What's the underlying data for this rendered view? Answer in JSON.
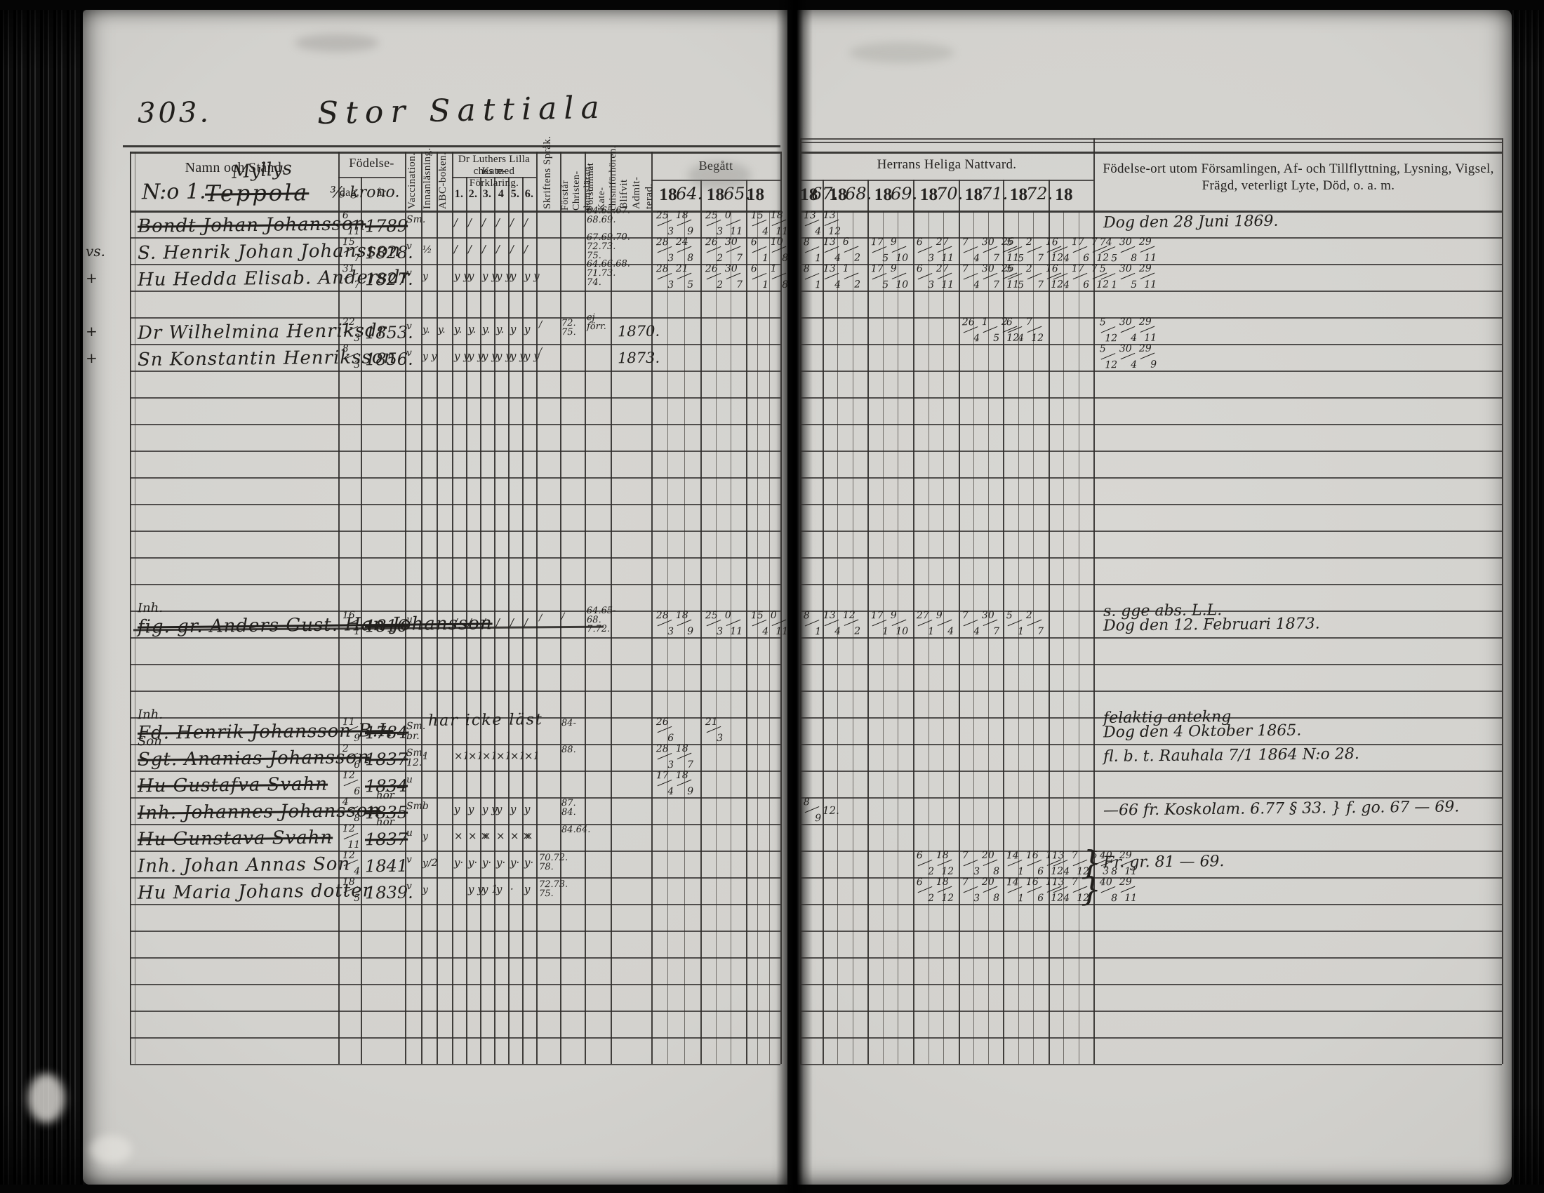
{
  "page": {
    "number": "303.",
    "title": "Stor Sattiala"
  },
  "table": {
    "left_headers": {
      "name": "Namn och Stånd.",
      "birth": "Födelse-",
      "birth_day": "dag.",
      "birth_year": "år.",
      "vaccination": "Vaccination.",
      "reading": "Innanläsning.",
      "abc": "ABC-boken.",
      "catechism_line1": "Dr Luthers Lilla Kate-",
      "catechism_line2": "ches med Förklaring.",
      "catechism_sub": [
        "1.",
        "2.",
        "3.",
        "4",
        "5.",
        "6."
      ],
      "scripture": "Skriftens Språk.",
      "understands": "Förstår Christen-domsläran.",
      "missed": "Försummat Kate-chisniförhören.",
      "admitted": "Blifvit Admit-terad.",
      "begatt": "Begått",
      "years": [
        {
          "p": "18",
          "w": "64."
        },
        {
          "p": "18",
          "w": "65."
        },
        {
          "p": "18",
          "w": ""
        }
      ]
    },
    "right_headers": {
      "nattvard": "Herrans Heliga Nattvard.",
      "years": [
        {
          "p": "18",
          "w": "67."
        },
        {
          "p": "18",
          "w": "68."
        },
        {
          "p": "18",
          "w": "69."
        },
        {
          "p": "18",
          "w": "70."
        },
        {
          "p": "18",
          "w": "71."
        },
        {
          "p": "18",
          "w": "72."
        },
        {
          "p": "18",
          "w": ""
        }
      ],
      "notes_line1": "Födelse-ort utom Församlingen, Af- och Tillflyttning, Lysning, Vigsel,",
      "notes_line2": "Frägd, veterligt Lyte, Död, o. a. m."
    },
    "group_heading": {
      "no": "N:o 1.",
      "name": "Teppola",
      "overwrite": "Myllys",
      "share": "⅜ krono."
    }
  },
  "rows": [
    {
      "i": 0,
      "name": "Bondt Johan Johansson",
      "strike": true,
      "dag": "6/11",
      "ar": "1789",
      "vacc": "Sm.",
      "k": [
        "∕",
        "∕",
        "∕",
        "∕",
        "∕",
        "∕"
      ],
      "forsummat": "64.65.67. 68.69.",
      "b": [
        "25/3 18/9",
        "25/3 0/11",
        "15/4 18/11"
      ],
      "n": [
        "13/4 13/12",
        "",
        "",
        "",
        "",
        "",
        ""
      ],
      "notes": [
        "Dog den 28 Juni 1869."
      ]
    },
    {
      "i": 1,
      "margin": "vs.",
      "prefix": "S.",
      "name": "Henrik Johan Johansson",
      "dag": "15/7",
      "ar": "1828.",
      "vacc": "v",
      "innan": "½",
      "k": [
        "∕",
        "∕",
        "∕",
        "∕",
        "∕",
        "∕"
      ],
      "forsummat": "67.69.70. 72.73. 75.",
      "b": [
        "28/3 24/8",
        "26/2 30/7",
        "6/1 10/8"
      ],
      "n": [
        "8/1 13/4 6/2",
        "",
        "17/5 9/10",
        "6/3 27/11",
        "7/4 30/7 26/11",
        "5/5 2/7 1/12",
        "6/4 17/6 7/12"
      ],
      "notefrac": "74/5 30/8 29/11"
    },
    {
      "i": 2,
      "margin": "+",
      "prefix": "Hu",
      "name": "Hedda Elisab. Andersdr",
      "dag": "31/7",
      "ar": "1827.",
      "vacc": "v",
      "innan": "y",
      "k": [
        "y y",
        "y",
        "y y",
        "y y",
        "y",
        "y y"
      ],
      "forsummat": "64.66.68. 71.73. 74.",
      "b": [
        "28/3 21/5",
        "26/2 30/7",
        "6/1 1/8"
      ],
      "n": [
        "8/1 13/4 1/2",
        "",
        "17/5 9/10",
        "6/3 27/11",
        "7/4 30/7 26/11",
        "5/5 2/7 1/12",
        "6/4 17/6 7/12"
      ],
      "notefrac": "5/1 30/5 29/11"
    },
    {
      "i": 4,
      "margin": "+",
      "prefix": "Dr",
      "name": "Wilhelmina Henriksdr",
      "dag": "22/3",
      "ar": "1853.",
      "vacc": "v",
      "innan": "y.",
      "abc": "y.",
      "k": [
        "y.",
        "y.",
        "y.",
        "y.",
        "y",
        "y"
      ],
      "skrift": "∕",
      "forstar": "72. 75.",
      "forsummat": "ej förr.",
      "admit": "1870.",
      "n": [
        "",
        "",
        "",
        "",
        "26/4 1/5 2/12",
        "6/4 7/12",
        ""
      ],
      "notefrac": "5/12 30/4 29/11"
    },
    {
      "i": 5,
      "margin": "+",
      "prefix": "Sn",
      "name": "Konstantin Henriksson",
      "dag": "8/3",
      "ar": "1856.",
      "vacc": "v",
      "innan": "y y",
      "k": [
        "y y",
        "y y",
        "y y",
        "y y",
        "y y",
        "y y"
      ],
      "skrift": "∕",
      "admit": "1873.",
      "notefrac": "5/12 30/4 29/9"
    },
    {
      "i": 15,
      "mabove": "Inh.",
      "prefix": "fig. gr.",
      "name": "Anders Gust. Han Johansson",
      "strike": true,
      "longstrike": true,
      "dag": "16/1",
      "ar": "1816",
      "vacc": "u",
      "k": [
        "∕",
        "∕",
        "∕",
        "∕",
        "∕",
        "∕"
      ],
      "skrift": "∕",
      "forstar": "∕",
      "forsummat": "64.65-68. 7.72.",
      "b": [
        "28/3 18/9",
        "25/3 0/11",
        "15/4 0/11"
      ],
      "n": [
        "8/1 13/4 12/2",
        "",
        "17/1 9/10",
        "27/1 9/4",
        "7/4 30/7",
        "5/1 2/7",
        ""
      ],
      "notes": [
        "s. gge abs. L.L.",
        "Dog den 12. Februari 1873."
      ]
    },
    {
      "i": 19,
      "mabove": "Inh.",
      "prefix": "Fd.",
      "name": "Henrik Johansson B.I.",
      "strike": true,
      "dag": "11/9",
      "ar": "1784",
      "vacc": "Sm. br.",
      "kspan": "har icke läst",
      "forstar": "84-",
      "b": [
        "26/6",
        "21/3",
        ""
      ],
      "notes": [
        "felaktig antekng",
        "Dog den 4 Oktober 1865."
      ]
    },
    {
      "i": 20,
      "mabove": "Son",
      "prefix": "Sgt.",
      "name": "Ananias Johansson",
      "strike": true,
      "dag": "2/6",
      "ar": "1837",
      "vacc": "Sm. 12.",
      "innan": "1",
      "k": [
        "×1",
        "×1",
        "×1",
        "×1",
        "×1",
        "×1"
      ],
      "forstar": "88.",
      "b": [
        "28/3 18/7",
        "",
        ""
      ],
      "notes": [
        "fl. b. t. Rauhala 7/1 1864 N:o 28."
      ]
    },
    {
      "i": 21,
      "prefix": "Hu",
      "name": "Gustafva Svahn",
      "strike": true,
      "dag": "12/6",
      "ar": "1834",
      "vacc": "u",
      "b": [
        "17/4 18/9",
        "",
        ""
      ]
    },
    {
      "i": 22,
      "prefix": "Inh.",
      "name": "Johannes Johansson",
      "strike": true,
      "dag": "4/8",
      "arnote": "hör",
      "ar": "1835",
      "vacc": "Smb",
      "k": [
        "y",
        "y",
        "y y",
        "y",
        "y",
        "y"
      ],
      "forstar": "87. 84.",
      "n": [
        "8/9 12.",
        "",
        "",
        "",
        "",
        "",
        ""
      ],
      "notes": [
        "—66 fr. Koskolam. 6.77 § 33.  }  f. go. 67 — 69."
      ]
    },
    {
      "i": 23,
      "prefix": "Hu",
      "name": "Gunstava Svahn",
      "strike": true,
      "dag": "12/11",
      "arnote": "hör",
      "ar": "1837",
      "vacc": "u",
      "innan": "y",
      "k": [
        "×",
        "× ×",
        "×",
        "×",
        "× ×",
        "×"
      ],
      "forstar": "84.64."
    },
    {
      "i": 24,
      "prefix": "Inh.",
      "name": "Johan Annas Son",
      "dag": "12/4",
      "ar": "1841",
      "vacc": "v",
      "innan": "y/2",
      "k": [
        "y·",
        "y·",
        "y·",
        "y·",
        "y·",
        "y·"
      ],
      "skrift": "70.72. 78.",
      "n": [
        "",
        "",
        "",
        "6/2 18/12",
        "7/3 20/8",
        "14/1 16/6 1/12",
        "13/4 7/12 5/3"
      ],
      "brace": true,
      "notes": [
        "Fr. gr. 81 — 69."
      ],
      "notefrac": "40/8 29/11"
    },
    {
      "i": 25,
      "prefix": "Hu",
      "name": "Maria Johans dotter",
      "dag": "18/5",
      "ar": "1839.",
      "vacc": "v",
      "innan": "y",
      "k": [
        "",
        "y y",
        "y 1",
        "y",
        "·",
        "y"
      ],
      "skrift": "72.73. 75.",
      "n": [
        "",
        "",
        "",
        "6/2 18/12",
        "7/3 20/8",
        "14/1 16/6 1/12",
        "13/4 7/12"
      ],
      "brace": true,
      "notefrac": "40/8 29/11"
    }
  ]
}
